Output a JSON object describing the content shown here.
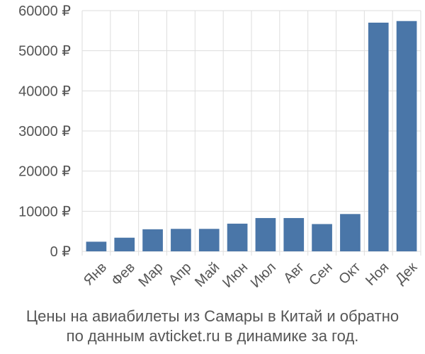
{
  "chart_data": {
    "type": "bar",
    "categories": [
      "Янв",
      "Фев",
      "Мар",
      "Апр",
      "Май",
      "Июн",
      "Июл",
      "Авг",
      "Сен",
      "Окт",
      "Ноя",
      "Дек"
    ],
    "values": [
      2400,
      3400,
      5500,
      5600,
      5600,
      6900,
      8300,
      8300,
      6800,
      9300,
      57000,
      57400
    ],
    "ylim": [
      0,
      60000
    ],
    "yticks": [
      0,
      10000,
      20000,
      30000,
      40000,
      50000,
      60000
    ],
    "ytick_labels": [
      "0 ₽",
      "10000 ₽",
      "20000 ₽",
      "30000 ₽",
      "40000 ₽",
      "50000 ₽",
      "60000 ₽"
    ],
    "bar_color": "#4a76a8",
    "grid": true,
    "xlabel": "",
    "ylabel": ""
  },
  "caption": {
    "line1": "Цены на авиабилеты из Самары в Китай и обратно",
    "line2": "по данным avticket.ru в динамике за год."
  }
}
